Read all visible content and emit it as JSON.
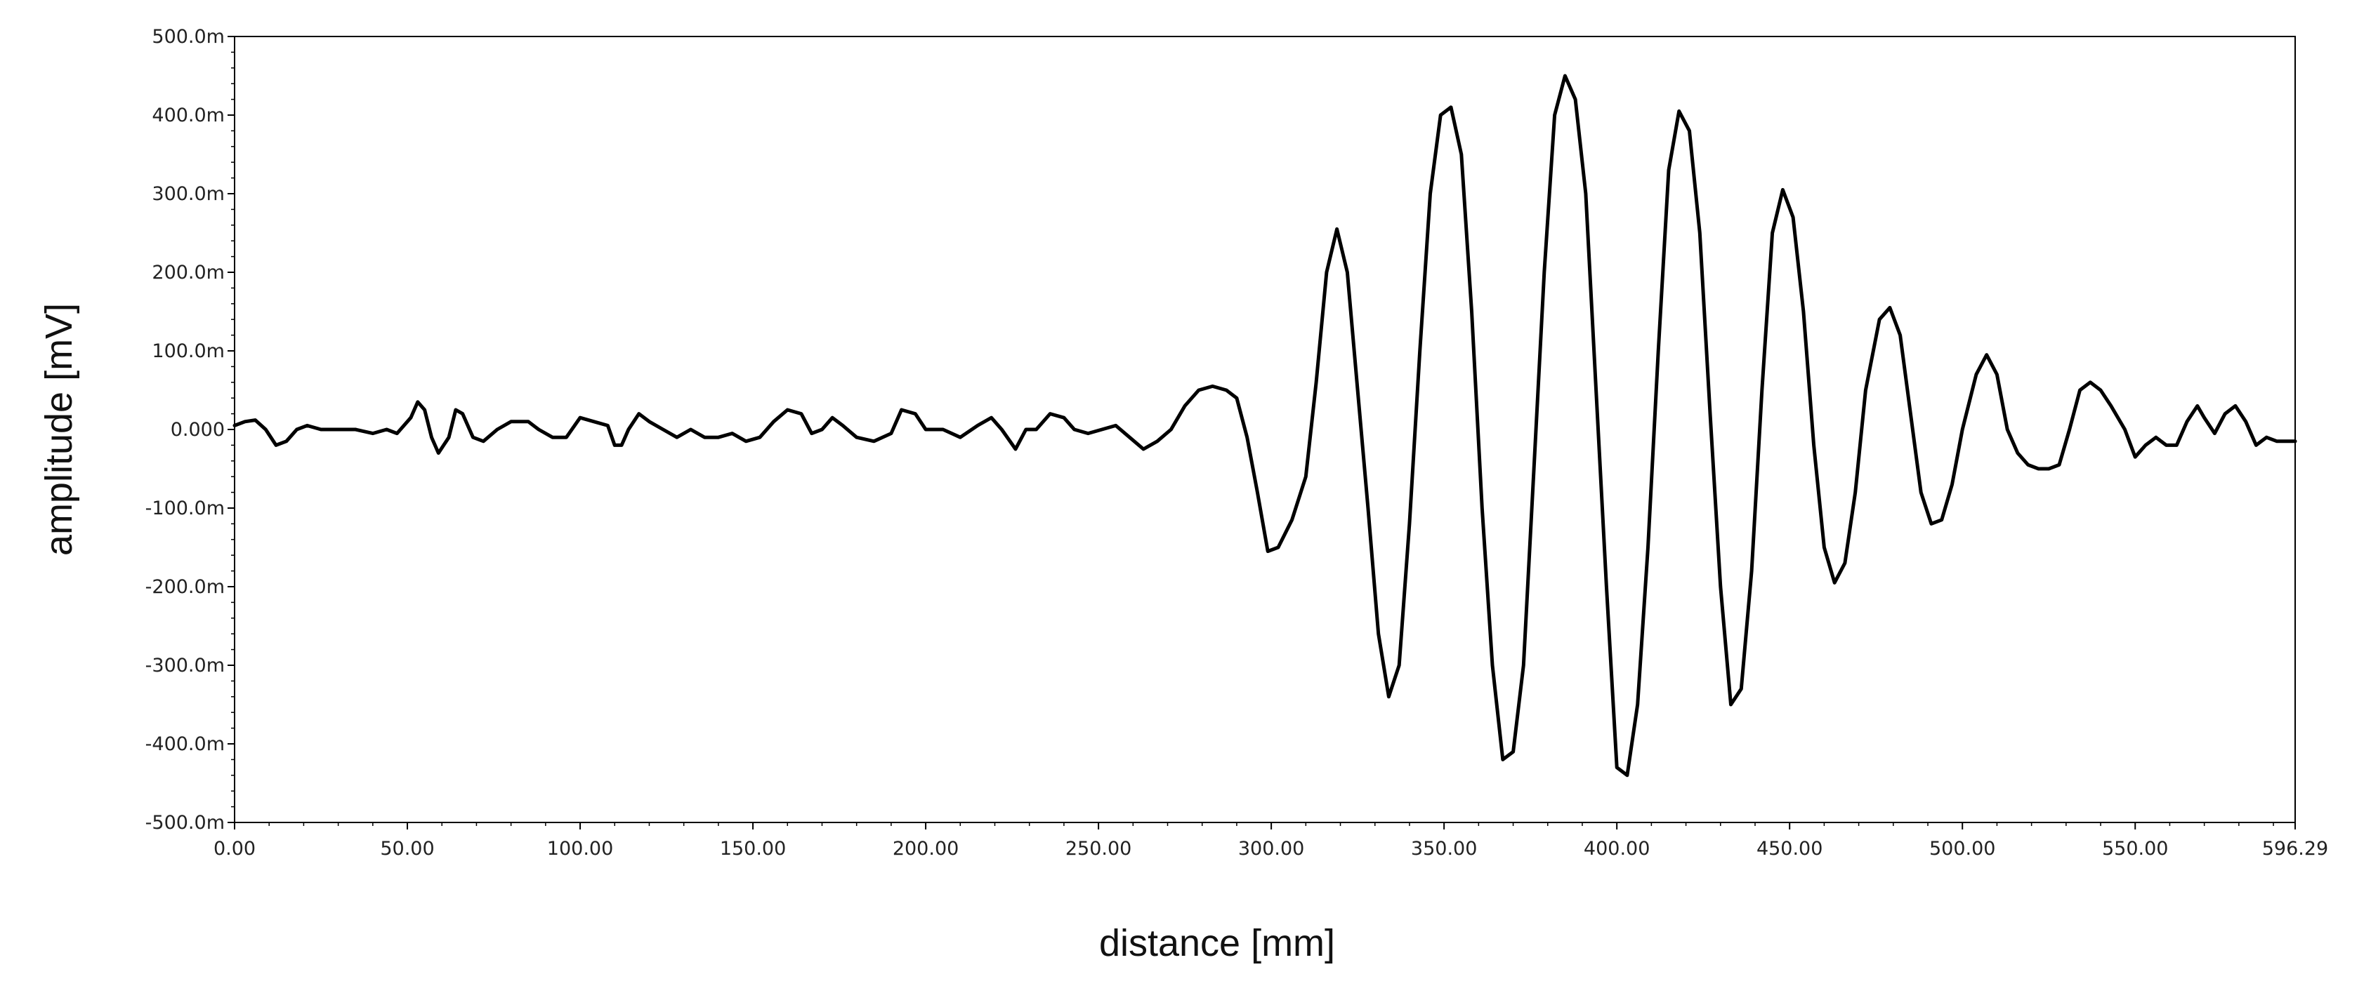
{
  "chart_data": {
    "type": "line",
    "xlabel": "distance [mm]",
    "ylabel": "amplitude [mV]",
    "xlim": [
      0,
      596.29
    ],
    "ylim": [
      -0.5,
      0.5
    ],
    "grid": false,
    "x_ticks": [
      0,
      50,
      100,
      150,
      200,
      250,
      300,
      350,
      400,
      450,
      500,
      550,
      596.29
    ],
    "x_tick_labels": [
      "0.00",
      "50.00",
      "100.00",
      "150.00",
      "200.00",
      "250.00",
      "300.00",
      "350.00",
      "400.00",
      "450.00",
      "500.00",
      "550.00",
      "596.29"
    ],
    "y_ticks": [
      0.5,
      0.4,
      0.3,
      0.2,
      0.1,
      0.0,
      -0.1,
      -0.2,
      -0.3,
      -0.4,
      -0.5
    ],
    "y_tick_labels": [
      "500.0m",
      "400.0m",
      "300.0m",
      "200.0m",
      "100.0m",
      "0.000",
      "-100.0m",
      "-200.0m",
      "-300.0m",
      "-400.0m",
      "-500.0m"
    ],
    "series": [
      {
        "color": "#000000",
        "points": [
          [
            0,
            0.005
          ],
          [
            3,
            0.01
          ],
          [
            6,
            0.012
          ],
          [
            9,
            0.0
          ],
          [
            12,
            -0.02
          ],
          [
            15,
            -0.015
          ],
          [
            18,
            0.0
          ],
          [
            21,
            0.005
          ],
          [
            25,
            0.0
          ],
          [
            30,
            0.0
          ],
          [
            35,
            0.0
          ],
          [
            40,
            -0.005
          ],
          [
            44,
            0.0
          ],
          [
            47,
            -0.005
          ],
          [
            51,
            0.015
          ],
          [
            53,
            0.035
          ],
          [
            55,
            0.025
          ],
          [
            57,
            -0.01
          ],
          [
            59,
            -0.03
          ],
          [
            62,
            -0.01
          ],
          [
            64,
            0.025
          ],
          [
            66,
            0.02
          ],
          [
            69,
            -0.01
          ],
          [
            72,
            -0.015
          ],
          [
            76,
            0.0
          ],
          [
            80,
            0.01
          ],
          [
            85,
            0.01
          ],
          [
            88,
            0.0
          ],
          [
            92,
            -0.01
          ],
          [
            96,
            -0.01
          ],
          [
            100,
            0.015
          ],
          [
            104,
            0.01
          ],
          [
            108,
            0.005
          ],
          [
            110,
            -0.02
          ],
          [
            112,
            -0.02
          ],
          [
            114,
            0.0
          ],
          [
            117,
            0.02
          ],
          [
            120,
            0.01
          ],
          [
            124,
            0.0
          ],
          [
            128,
            -0.01
          ],
          [
            132,
            0.0
          ],
          [
            136,
            -0.01
          ],
          [
            140,
            -0.01
          ],
          [
            144,
            -0.005
          ],
          [
            148,
            -0.015
          ],
          [
            152,
            -0.01
          ],
          [
            156,
            0.01
          ],
          [
            160,
            0.025
          ],
          [
            164,
            0.02
          ],
          [
            167,
            -0.005
          ],
          [
            170,
            0.0
          ],
          [
            173,
            0.015
          ],
          [
            176,
            0.005
          ],
          [
            180,
            -0.01
          ],
          [
            185,
            -0.015
          ],
          [
            190,
            -0.005
          ],
          [
            193,
            0.025
          ],
          [
            197,
            0.02
          ],
          [
            200,
            0.0
          ],
          [
            205,
            0.0
          ],
          [
            210,
            -0.01
          ],
          [
            215,
            0.005
          ],
          [
            219,
            0.015
          ],
          [
            222,
            0.0
          ],
          [
            226,
            -0.025
          ],
          [
            229,
            0.0
          ],
          [
            232,
            0.0
          ],
          [
            236,
            0.02
          ],
          [
            240,
            0.015
          ],
          [
            243,
            0.0
          ],
          [
            247,
            -0.005
          ],
          [
            251,
            0.0
          ],
          [
            255,
            0.005
          ],
          [
            259,
            -0.01
          ],
          [
            263,
            -0.025
          ],
          [
            267,
            -0.015
          ],
          [
            271,
            0.0
          ],
          [
            275,
            0.03
          ],
          [
            279,
            0.05
          ],
          [
            283,
            0.055
          ],
          [
            287,
            0.05
          ],
          [
            290,
            0.04
          ],
          [
            293,
            -0.01
          ],
          [
            296,
            -0.08
          ],
          [
            299,
            -0.155
          ],
          [
            302,
            -0.15
          ],
          [
            306,
            -0.115
          ],
          [
            310,
            -0.06
          ],
          [
            313,
            0.06
          ],
          [
            316,
            0.2
          ],
          [
            319,
            0.255
          ],
          [
            322,
            0.2
          ],
          [
            325,
            0.05
          ],
          [
            328,
            -0.1
          ],
          [
            331,
            -0.26
          ],
          [
            334,
            -0.34
          ],
          [
            337,
            -0.3
          ],
          [
            340,
            -0.12
          ],
          [
            343,
            0.1
          ],
          [
            346,
            0.3
          ],
          [
            349,
            0.4
          ],
          [
            352,
            0.41
          ],
          [
            355,
            0.35
          ],
          [
            358,
            0.15
          ],
          [
            361,
            -0.1
          ],
          [
            364,
            -0.3
          ],
          [
            367,
            -0.42
          ],
          [
            370,
            -0.41
          ],
          [
            373,
            -0.3
          ],
          [
            376,
            -0.05
          ],
          [
            379,
            0.2
          ],
          [
            382,
            0.4
          ],
          [
            385,
            0.45
          ],
          [
            388,
            0.42
          ],
          [
            391,
            0.3
          ],
          [
            394,
            0.05
          ],
          [
            397,
            -0.2
          ],
          [
            400,
            -0.43
          ],
          [
            403,
            -0.44
          ],
          [
            406,
            -0.35
          ],
          [
            409,
            -0.15
          ],
          [
            412,
            0.1
          ],
          [
            415,
            0.33
          ],
          [
            418,
            0.405
          ],
          [
            421,
            0.38
          ],
          [
            424,
            0.25
          ],
          [
            427,
            0.02
          ],
          [
            430,
            -0.2
          ],
          [
            433,
            -0.35
          ],
          [
            436,
            -0.33
          ],
          [
            439,
            -0.18
          ],
          [
            442,
            0.05
          ],
          [
            445,
            0.25
          ],
          [
            448,
            0.305
          ],
          [
            451,
            0.27
          ],
          [
            454,
            0.15
          ],
          [
            457,
            -0.02
          ],
          [
            460,
            -0.15
          ],
          [
            463,
            -0.195
          ],
          [
            466,
            -0.17
          ],
          [
            469,
            -0.08
          ],
          [
            472,
            0.05
          ],
          [
            476,
            0.14
          ],
          [
            479,
            0.155
          ],
          [
            482,
            0.12
          ],
          [
            485,
            0.02
          ],
          [
            488,
            -0.08
          ],
          [
            491,
            -0.12
          ],
          [
            494,
            -0.115
          ],
          [
            497,
            -0.07
          ],
          [
            500,
            0.0
          ],
          [
            504,
            0.07
          ],
          [
            507,
            0.095
          ],
          [
            510,
            0.07
          ],
          [
            513,
            0.0
          ],
          [
            516,
            -0.03
          ],
          [
            519,
            -0.045
          ],
          [
            522,
            -0.05
          ],
          [
            525,
            -0.05
          ],
          [
            528,
            -0.045
          ],
          [
            531,
            0.0
          ],
          [
            534,
            0.05
          ],
          [
            537,
            0.06
          ],
          [
            540,
            0.05
          ],
          [
            543,
            0.03
          ],
          [
            547,
            0.0
          ],
          [
            550,
            -0.035
          ],
          [
            553,
            -0.02
          ],
          [
            556,
            -0.01
          ],
          [
            559,
            -0.02
          ],
          [
            562,
            -0.02
          ],
          [
            565,
            0.01
          ],
          [
            568,
            0.03
          ],
          [
            570,
            0.015
          ],
          [
            573,
            -0.005
          ],
          [
            576,
            0.02
          ],
          [
            579,
            0.03
          ],
          [
            582,
            0.01
          ],
          [
            585,
            -0.02
          ],
          [
            588,
            -0.01
          ],
          [
            591,
            -0.015
          ],
          [
            594,
            -0.015
          ],
          [
            596.29,
            -0.015
          ]
        ]
      }
    ]
  }
}
